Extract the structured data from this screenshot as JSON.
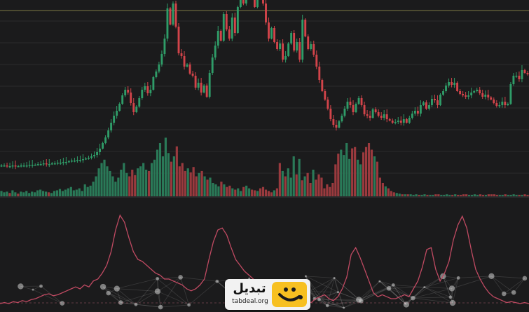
{
  "brand": {
    "name": "تبدیل",
    "url": "tabdeal.org",
    "accent": "#f7c021",
    "icon": "smile-logo-icon"
  },
  "chart_data": {
    "type": "candlestick",
    "panels": [
      "price",
      "volume",
      "indicator"
    ],
    "reference_line": {
      "color": "#7d7a45"
    },
    "colors": {
      "up": "#2f9c68",
      "down": "#d2444a",
      "volume_up": "#2a7a58",
      "volume_down": "#9a3a3e",
      "indicator": "#c04a62",
      "background": "#1b1b1c",
      "grid": "#2b2b2d"
    },
    "title": "",
    "xlabel": "",
    "ylabel": "",
    "price_closes": [
      236,
      236,
      237,
      237,
      236,
      237,
      237,
      236,
      236,
      236,
      235,
      235,
      235,
      234,
      234,
      233,
      234,
      234,
      233,
      233,
      232,
      232,
      231,
      231,
      230,
      229,
      229,
      228,
      228,
      227,
      226,
      225,
      223,
      221,
      217,
      212,
      204,
      196,
      186,
      175,
      165,
      158,
      148,
      136,
      128,
      132,
      147,
      160,
      152,
      140,
      128,
      123,
      133,
      128,
      110,
      102,
      92,
      77,
      55,
      12,
      35,
      5,
      38,
      76,
      80,
      95,
      92,
      105,
      108,
      125,
      118,
      132,
      122,
      138,
      104,
      82,
      65,
      44,
      58,
      20,
      42,
      55,
      25,
      47,
      10,
      -12,
      5,
      -8,
      -18,
      -5,
      10,
      -10,
      -8,
      5,
      32,
      55,
      40,
      60,
      70,
      62,
      85,
      80,
      62,
      47,
      72,
      60,
      85,
      28,
      52,
      70,
      63,
      78,
      95,
      114,
      130,
      142,
      155,
      170,
      178,
      182,
      173,
      165,
      155,
      145,
      150,
      160,
      148,
      140,
      150,
      163,
      165,
      168,
      156,
      160,
      165,
      168,
      163,
      170,
      172,
      175,
      174,
      172,
      175,
      170,
      175,
      168,
      162,
      158,
      162,
      150,
      146,
      155,
      150,
      141,
      143,
      150,
      135,
      130,
      122,
      117,
      121,
      118,
      130,
      134,
      136,
      138,
      136,
      132,
      130,
      128,
      133,
      138,
      135,
      139,
      142,
      147,
      151,
      150,
      145,
      150,
      148,
      120,
      108,
      108,
      113,
      100,
      104,
      106
    ],
    "volume": [
      8,
      6,
      7,
      5,
      9,
      6,
      4,
      7,
      6,
      8,
      5,
      7,
      6,
      9,
      10,
      8,
      7,
      6,
      5,
      8,
      9,
      11,
      8,
      10,
      12,
      14,
      9,
      10,
      12,
      8,
      18,
      14,
      16,
      22,
      30,
      42,
      50,
      55,
      45,
      38,
      30,
      22,
      28,
      40,
      50,
      35,
      30,
      40,
      32,
      42,
      45,
      50,
      40,
      38,
      50,
      55,
      70,
      80,
      60,
      88,
      65,
      52,
      60,
      75,
      45,
      50,
      38,
      42,
      36,
      44,
      30,
      35,
      38,
      30,
      25,
      28,
      20,
      18,
      15,
      22,
      18,
      14,
      16,
      12,
      10,
      12,
      8,
      14,
      16,
      12,
      10,
      9,
      8,
      12,
      14,
      10,
      8,
      6,
      9,
      12,
      50,
      38,
      30,
      42,
      28,
      60,
      33,
      56,
      24,
      30,
      35,
      20,
      40,
      25,
      33,
      28,
      12,
      18,
      14,
      20,
      48,
      64,
      70,
      62,
      80,
      56,
      72,
      74,
      55,
      48,
      66,
      74,
      80,
      70,
      60,
      52,
      28,
      20,
      15,
      12,
      8,
      6,
      5,
      4,
      3,
      3,
      3,
      3,
      2,
      3,
      2,
      2,
      3,
      2,
      2,
      2,
      3,
      3,
      2,
      2,
      3,
      2,
      2,
      3,
      2,
      2,
      3,
      3,
      2,
      2,
      3,
      2,
      3,
      2,
      2,
      3,
      3,
      3,
      2,
      2,
      2,
      3,
      2,
      2,
      3,
      2,
      2,
      2,
      3,
      2
    ],
    "indicator": [
      0.05,
      0.06,
      0.05,
      0.07,
      0.06,
      0.08,
      0.07,
      0.09,
      0.1,
      0.12,
      0.14,
      0.15,
      0.13,
      0.14,
      0.16,
      0.18,
      0.2,
      0.22,
      0.2,
      0.24,
      0.22,
      0.28,
      0.3,
      0.36,
      0.44,
      0.58,
      0.8,
      0.95,
      0.88,
      0.72,
      0.58,
      0.5,
      0.48,
      0.44,
      0.4,
      0.36,
      0.34,
      0.3,
      0.3,
      0.28,
      0.26,
      0.24,
      0.2,
      0.18,
      0.2,
      0.24,
      0.3,
      0.5,
      0.68,
      0.8,
      0.82,
      0.75,
      0.62,
      0.5,
      0.44,
      0.38,
      0.34,
      0.3,
      0.26,
      0.22,
      0.2,
      0.18,
      0.16,
      0.12,
      0.1,
      0.08,
      0.1,
      0.12,
      0.1,
      0.08,
      0.06,
      0.1,
      0.12,
      0.14,
      0.1,
      0.08,
      0.12,
      0.2,
      0.32,
      0.55,
      0.62,
      0.52,
      0.4,
      0.28,
      0.16,
      0.12,
      0.14,
      0.12,
      0.1,
      0.1,
      0.12,
      0.14,
      0.12,
      0.2,
      0.28,
      0.42,
      0.6,
      0.62,
      0.4,
      0.28,
      0.36,
      0.48,
      0.7,
      0.85,
      0.94,
      0.82,
      0.6,
      0.4,
      0.3,
      0.22,
      0.16,
      0.12,
      0.1,
      0.08,
      0.06,
      0.07,
      0.06,
      0.05,
      0.06,
      0.05
    ]
  }
}
